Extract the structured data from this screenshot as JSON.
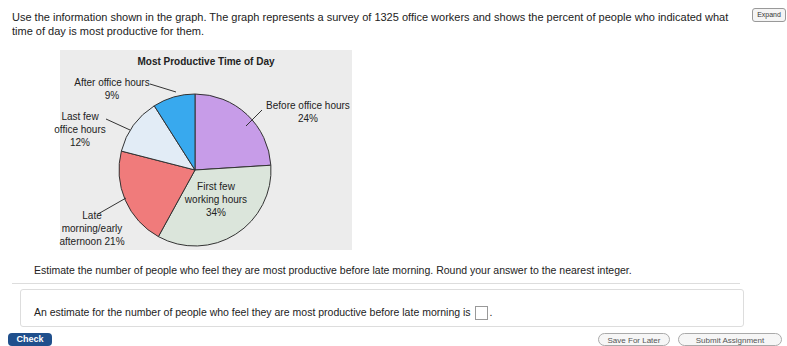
{
  "header": {
    "instructions": "Use the information shown in the graph. The graph represents a survey of 1325 office workers and shows the percent of people who indicated what time of day is most productive for them.",
    "button": "Expand"
  },
  "chart_data": {
    "type": "pie",
    "title": "Most Productive Time of Day",
    "categories": [
      "Before office hours",
      "First few\nworking hours",
      "Late\nmorning/early\nafternoon",
      "Last few\noffice hours",
      "After office hours"
    ],
    "values": [
      24,
      34,
      21,
      12,
      9
    ],
    "value_labels": [
      "24%",
      "34%",
      "21%",
      "12%",
      "9%"
    ],
    "colors": [
      "#c79ce8",
      "#dbe5db",
      "#f07b7b",
      "#e2ecf6",
      "#38a9ee"
    ],
    "data_labels": true
  },
  "question": "Estimate the number of people who feel they are most productive before late morning. Round your answer to the nearest integer.",
  "answer": {
    "before": "An estimate for the number of people who feel they are most productive before late morning is",
    "after": "."
  },
  "footer": {
    "buttons": [
      "Check",
      "Save For Later",
      "Submit Assignment"
    ]
  }
}
